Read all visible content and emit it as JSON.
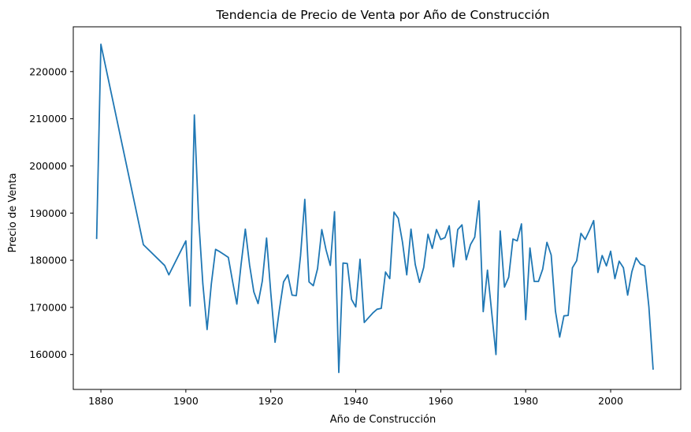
{
  "chart_data": {
    "type": "line",
    "title": "Tendencia de Precio de Venta por Año de Construcción",
    "xlabel": "Año de Construcción",
    "ylabel": "Precio de Venta",
    "xlim": [
      1873.5,
      2016.5
    ],
    "ylim": [
      152600,
      229500
    ],
    "xticks": [
      1880,
      1900,
      1920,
      1940,
      1960,
      1980,
      2000
    ],
    "yticks": [
      160000,
      170000,
      180000,
      190000,
      200000,
      210000,
      220000
    ],
    "grid": false,
    "legend": "none",
    "series": [
      {
        "color": "#1f77b4",
        "x": [
          1879,
          1880,
          1890,
          1895,
          1896,
          1900,
          1901,
          1902,
          1903,
          1904,
          1905,
          1906,
          1907,
          1908,
          1909,
          1910,
          1911,
          1912,
          1913,
          1914,
          1915,
          1916,
          1917,
          1918,
          1919,
          1920,
          1921,
          1922,
          1923,
          1924,
          1925,
          1926,
          1927,
          1928,
          1929,
          1930,
          1931,
          1932,
          1933,
          1934,
          1935,
          1936,
          1937,
          1938,
          1939,
          1940,
          1941,
          1942,
          1943,
          1944,
          1945,
          1946,
          1947,
          1948,
          1949,
          1950,
          1951,
          1952,
          1953,
          1954,
          1955,
          1956,
          1957,
          1958,
          1959,
          1960,
          1961,
          1962,
          1963,
          1964,
          1965,
          1966,
          1967,
          1968,
          1969,
          1970,
          1971,
          1972,
          1973,
          1974,
          1975,
          1976,
          1977,
          1978,
          1979,
          1980,
          1981,
          1982,
          1983,
          1984,
          1985,
          1986,
          1987,
          1988,
          1989,
          1990,
          1991,
          1992,
          1993,
          1994,
          1995,
          1996,
          1997,
          1998,
          1999,
          2000,
          2001,
          2002,
          2003,
          2004,
          2005,
          2006,
          2007,
          2008,
          2009,
          2010
        ],
        "y": [
          184500,
          225800,
          183300,
          178900,
          176900,
          184100,
          170300,
          210800,
          189000,
          175000,
          165300,
          175000,
          182300,
          181800,
          181200,
          180600,
          175500,
          170700,
          179100,
          186600,
          179000,
          173300,
          170800,
          175600,
          184700,
          173000,
          162600,
          169400,
          175400,
          176900,
          172600,
          172500,
          181000,
          192900,
          175400,
          174600,
          178200,
          186500,
          182200,
          178900,
          190300,
          156200,
          179400,
          179300,
          171700,
          170100,
          180200,
          166800,
          167800,
          168800,
          169600,
          169800,
          177500,
          176100,
          190200,
          188900,
          183800,
          176900,
          186600,
          179100,
          175300,
          178500,
          185500,
          182500,
          186500,
          184400,
          184800,
          187300,
          178600,
          186500,
          187500,
          180100,
          183300,
          184900,
          192600,
          169100,
          177900,
          168900,
          160000,
          186200,
          174300,
          176400,
          184500,
          184100,
          187700,
          167400,
          182600,
          175500,
          175500,
          178100,
          183800,
          181100,
          169200,
          163700,
          168200,
          168300,
          178400,
          179900,
          185700,
          184400,
          186300,
          188400,
          177400,
          181000,
          178800,
          181900,
          176100,
          179800,
          178400,
          172600,
          177600,
          180500,
          179200,
          178800,
          170100,
          156800
        ]
      }
    ]
  }
}
